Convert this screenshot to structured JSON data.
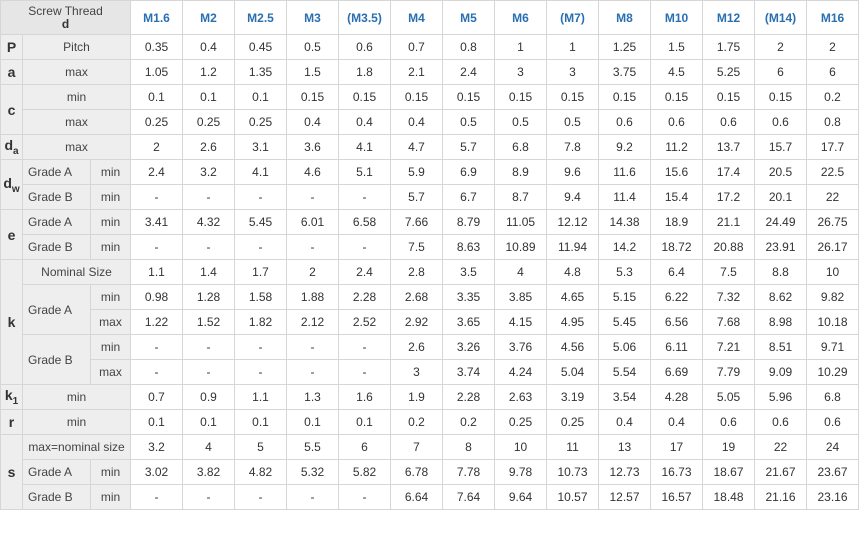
{
  "header": {
    "title_line1": "Screw Thread",
    "title_line2": "d",
    "sizes": [
      "M1.6",
      "M2",
      "M2.5",
      "M3",
      "(M3.5)",
      "M4",
      "M5",
      "M6",
      "(M7)",
      "M8",
      "M10",
      "M12",
      "(M14)",
      "M16"
    ]
  },
  "colors": {
    "label_bg": "#eeeeee",
    "header_bg": "#e6e6e6",
    "size_text": "#2a6fb0",
    "border": "#d6d6d6"
  },
  "rows": [
    {
      "sym": "P",
      "sub": "",
      "grade": "",
      "label": "Pitch",
      "values": [
        "0.35",
        "0.4",
        "0.45",
        "0.5",
        "0.6",
        "0.7",
        "0.8",
        "1",
        "1",
        "1.25",
        "1.5",
        "1.75",
        "2",
        "2"
      ]
    },
    {
      "sym": "a",
      "sub": "",
      "grade": "",
      "label": "max",
      "values": [
        "1.05",
        "1.2",
        "1.35",
        "1.5",
        "1.8",
        "2.1",
        "2.4",
        "3",
        "3",
        "3.75",
        "4.5",
        "5.25",
        "6",
        "6"
      ]
    },
    {
      "sym": "c",
      "sub": "",
      "grade": "",
      "label": "min",
      "values": [
        "0.1",
        "0.1",
        "0.1",
        "0.15",
        "0.15",
        "0.15",
        "0.15",
        "0.15",
        "0.15",
        "0.15",
        "0.15",
        "0.15",
        "0.15",
        "0.2"
      ]
    },
    {
      "sym": "",
      "sub": "",
      "grade": "",
      "label": "max",
      "values": [
        "0.25",
        "0.25",
        "0.25",
        "0.4",
        "0.4",
        "0.4",
        "0.5",
        "0.5",
        "0.5",
        "0.6",
        "0.6",
        "0.6",
        "0.6",
        "0.8"
      ]
    },
    {
      "sym": "d",
      "sub": "a",
      "grade": "",
      "label": "max",
      "values": [
        "2",
        "2.6",
        "3.1",
        "3.6",
        "4.1",
        "4.7",
        "5.7",
        "6.8",
        "7.8",
        "9.2",
        "11.2",
        "13.7",
        "15.7",
        "17.7"
      ]
    },
    {
      "sym": "d",
      "sub": "w",
      "grade": "Grade A",
      "label": "min",
      "values": [
        "2.4",
        "3.2",
        "4.1",
        "4.6",
        "5.1",
        "5.9",
        "6.9",
        "8.9",
        "9.6",
        "11.6",
        "15.6",
        "17.4",
        "20.5",
        "22.5"
      ]
    },
    {
      "sym": "",
      "sub": "",
      "grade": "Grade B",
      "label": "min",
      "values": [
        "-",
        "-",
        "-",
        "-",
        "-",
        "5.7",
        "6.7",
        "8.7",
        "9.4",
        "11.4",
        "15.4",
        "17.2",
        "20.1",
        "22"
      ]
    },
    {
      "sym": "e",
      "sub": "",
      "grade": "Grade A",
      "label": "min",
      "values": [
        "3.41",
        "4.32",
        "5.45",
        "6.01",
        "6.58",
        "7.66",
        "8.79",
        "11.05",
        "12.12",
        "14.38",
        "18.9",
        "21.1",
        "24.49",
        "26.75"
      ]
    },
    {
      "sym": "",
      "sub": "",
      "grade": "Grade B",
      "label": "min",
      "values": [
        "-",
        "-",
        "-",
        "-",
        "-",
        "7.5",
        "8.63",
        "10.89",
        "11.94",
        "14.2",
        "18.72",
        "20.88",
        "23.91",
        "26.17"
      ]
    },
    {
      "sym": "k",
      "sub": "",
      "grade": "",
      "label": "Nominal Size",
      "values": [
        "1.1",
        "1.4",
        "1.7",
        "2",
        "2.4",
        "2.8",
        "3.5",
        "4",
        "4.8",
        "5.3",
        "6.4",
        "7.5",
        "8.8",
        "10"
      ]
    },
    {
      "sym": "",
      "sub": "",
      "grade": "Grade A",
      "label": "min",
      "values": [
        "0.98",
        "1.28",
        "1.58",
        "1.88",
        "2.28",
        "2.68",
        "3.35",
        "3.85",
        "4.65",
        "5.15",
        "6.22",
        "7.32",
        "8.62",
        "9.82"
      ]
    },
    {
      "sym": "",
      "sub": "",
      "grade": "",
      "label": "max",
      "values": [
        "1.22",
        "1.52",
        "1.82",
        "2.12",
        "2.52",
        "2.92",
        "3.65",
        "4.15",
        "4.95",
        "5.45",
        "6.56",
        "7.68",
        "8.98",
        "10.18"
      ]
    },
    {
      "sym": "",
      "sub": "",
      "grade": "Grade B",
      "label": "min",
      "values": [
        "-",
        "-",
        "-",
        "-",
        "-",
        "2.6",
        "3.26",
        "3.76",
        "4.56",
        "5.06",
        "6.11",
        "7.21",
        "8.51",
        "9.71"
      ]
    },
    {
      "sym": "",
      "sub": "",
      "grade": "",
      "label": "max",
      "values": [
        "-",
        "-",
        "-",
        "-",
        "-",
        "3",
        "3.74",
        "4.24",
        "5.04",
        "5.54",
        "6.69",
        "7.79",
        "9.09",
        "10.29"
      ]
    },
    {
      "sym": "k",
      "sub": "1",
      "grade": "",
      "label": "min",
      "values": [
        "0.7",
        "0.9",
        "1.1",
        "1.3",
        "1.6",
        "1.9",
        "2.28",
        "2.63",
        "3.19",
        "3.54",
        "4.28",
        "5.05",
        "5.96",
        "6.8"
      ]
    },
    {
      "sym": "r",
      "sub": "",
      "grade": "",
      "label": "min",
      "values": [
        "0.1",
        "0.1",
        "0.1",
        "0.1",
        "0.1",
        "0.2",
        "0.2",
        "0.25",
        "0.25",
        "0.4",
        "0.4",
        "0.6",
        "0.6",
        "0.6"
      ]
    },
    {
      "sym": "s",
      "sub": "",
      "grade": "",
      "label": "max=nominal size",
      "values": [
        "3.2",
        "4",
        "5",
        "5.5",
        "6",
        "7",
        "8",
        "10",
        "11",
        "13",
        "17",
        "19",
        "22",
        "24"
      ]
    },
    {
      "sym": "",
      "sub": "",
      "grade": "Grade A",
      "label": "min",
      "values": [
        "3.02",
        "3.82",
        "4.82",
        "5.32",
        "5.82",
        "6.78",
        "7.78",
        "9.78",
        "10.73",
        "12.73",
        "16.73",
        "18.67",
        "21.67",
        "23.67"
      ]
    },
    {
      "sym": "",
      "sub": "",
      "grade": "Grade B",
      "label": "min",
      "values": [
        "-",
        "-",
        "-",
        "-",
        "-",
        "6.64",
        "7.64",
        "9.64",
        "10.57",
        "12.57",
        "16.57",
        "18.48",
        "21.16",
        "23.16"
      ]
    }
  ]
}
